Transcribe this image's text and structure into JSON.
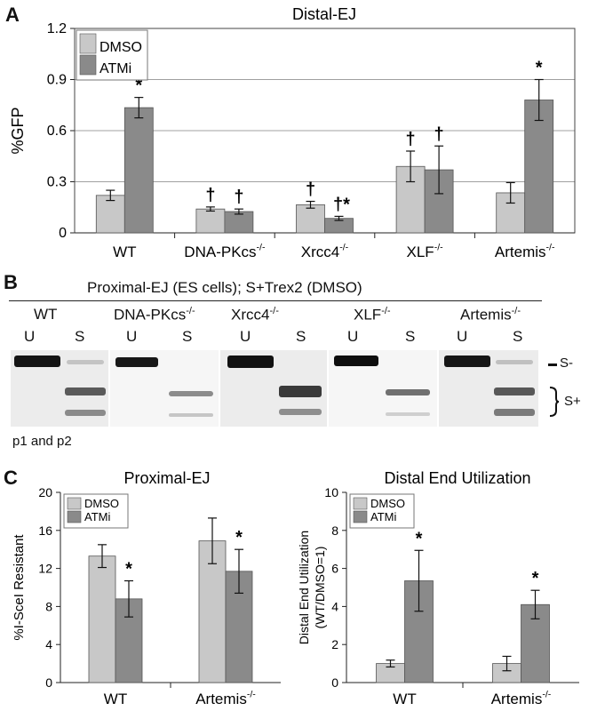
{
  "panel_labels": {
    "a": "A",
    "b": "B",
    "c": "C"
  },
  "panel_b": {
    "title": "Proximal-EJ (ES cells); S+Trex2 (DMSO)",
    "lanes": [
      {
        "genotype": "WT",
        "sup": "",
        "u": "U",
        "s": "S"
      },
      {
        "genotype": "DNA-PKcs",
        "sup": "-/-",
        "u": "U",
        "s": "S"
      },
      {
        "genotype": "Xrcc4",
        "sup": "-/-",
        "u": "U",
        "s": "S"
      },
      {
        "genotype": "XLF",
        "sup": "-/-",
        "u": "U",
        "s": "S"
      },
      {
        "genotype": "Artemis",
        "sup": "-/-",
        "u": "U",
        "s": "S"
      }
    ],
    "s_minus": "S-",
    "s_plus": "S+",
    "footnote": "p1 and p2"
  },
  "colors": {
    "dmso": "#c8c8c8",
    "atmi": "#8a8a8a",
    "grid": "#a0a0a0",
    "frame": "#444444"
  },
  "chart_data": [
    {
      "type": "bar",
      "title": "Distal-EJ",
      "ylabel": "%GFP",
      "ylim": [
        0,
        1.2
      ],
      "yticks": [
        "0",
        "0.3",
        "0.6",
        "0.9",
        "1.2"
      ],
      "grid": true,
      "legend_position": "top-left",
      "categories": [
        {
          "name": "WT",
          "sup": ""
        },
        {
          "name": "DNA-PKcs",
          "sup": "-/-"
        },
        {
          "name": "Xrcc4",
          "sup": "-/-"
        },
        {
          "name": "XLF",
          "sup": "-/-"
        },
        {
          "name": "Artemis",
          "sup": "-/-"
        }
      ],
      "series": [
        {
          "name": "DMSO",
          "values": [
            0.22,
            0.14,
            0.165,
            0.39,
            0.235
          ],
          "errors": [
            0.03,
            0.012,
            0.02,
            0.09,
            0.06
          ],
          "marks": [
            "",
            "†",
            "†",
            "†",
            ""
          ]
        },
        {
          "name": "ATMi",
          "values": [
            0.735,
            0.125,
            0.085,
            0.37,
            0.78
          ],
          "errors": [
            0.06,
            0.015,
            0.012,
            0.14,
            0.12
          ],
          "marks": [
            "*",
            "†",
            "†*",
            "†",
            "*"
          ]
        }
      ]
    },
    {
      "type": "bar",
      "title": "Proximal-EJ",
      "ylabel": "%I-SceI Resistant",
      "ylim": [
        0,
        20
      ],
      "yticks": [
        "0",
        "4",
        "8",
        "12",
        "16",
        "20"
      ],
      "grid": false,
      "legend_position": "top-left",
      "categories": [
        {
          "name": "WT",
          "sup": ""
        },
        {
          "name": "Artemis",
          "sup": "-/-"
        }
      ],
      "series": [
        {
          "name": "DMSO",
          "values": [
            13.3,
            14.9
          ],
          "errors": [
            1.2,
            2.4
          ],
          "marks": [
            "",
            ""
          ]
        },
        {
          "name": "ATMi",
          "values": [
            8.8,
            11.7
          ],
          "errors": [
            1.9,
            2.3
          ],
          "marks": [
            "*",
            "*"
          ]
        }
      ]
    },
    {
      "type": "bar",
      "title": "Distal End Utilization",
      "ylabel": "Distal End Utilization",
      "ylabel2": "(WT/DMSO=1)",
      "ylim": [
        0,
        10
      ],
      "yticks": [
        "0",
        "2",
        "4",
        "6",
        "8",
        "10"
      ],
      "grid": false,
      "legend_position": "top-left",
      "categories": [
        {
          "name": "WT",
          "sup": ""
        },
        {
          "name": "Artemis",
          "sup": "-/-"
        }
      ],
      "series": [
        {
          "name": "DMSO",
          "values": [
            1.0,
            1.0
          ],
          "errors": [
            0.18,
            0.38
          ],
          "marks": [
            "",
            ""
          ]
        },
        {
          "name": "ATMi",
          "values": [
            5.35,
            4.1
          ],
          "errors": [
            1.6,
            0.75
          ],
          "marks": [
            "*",
            "*"
          ]
        }
      ]
    }
  ]
}
